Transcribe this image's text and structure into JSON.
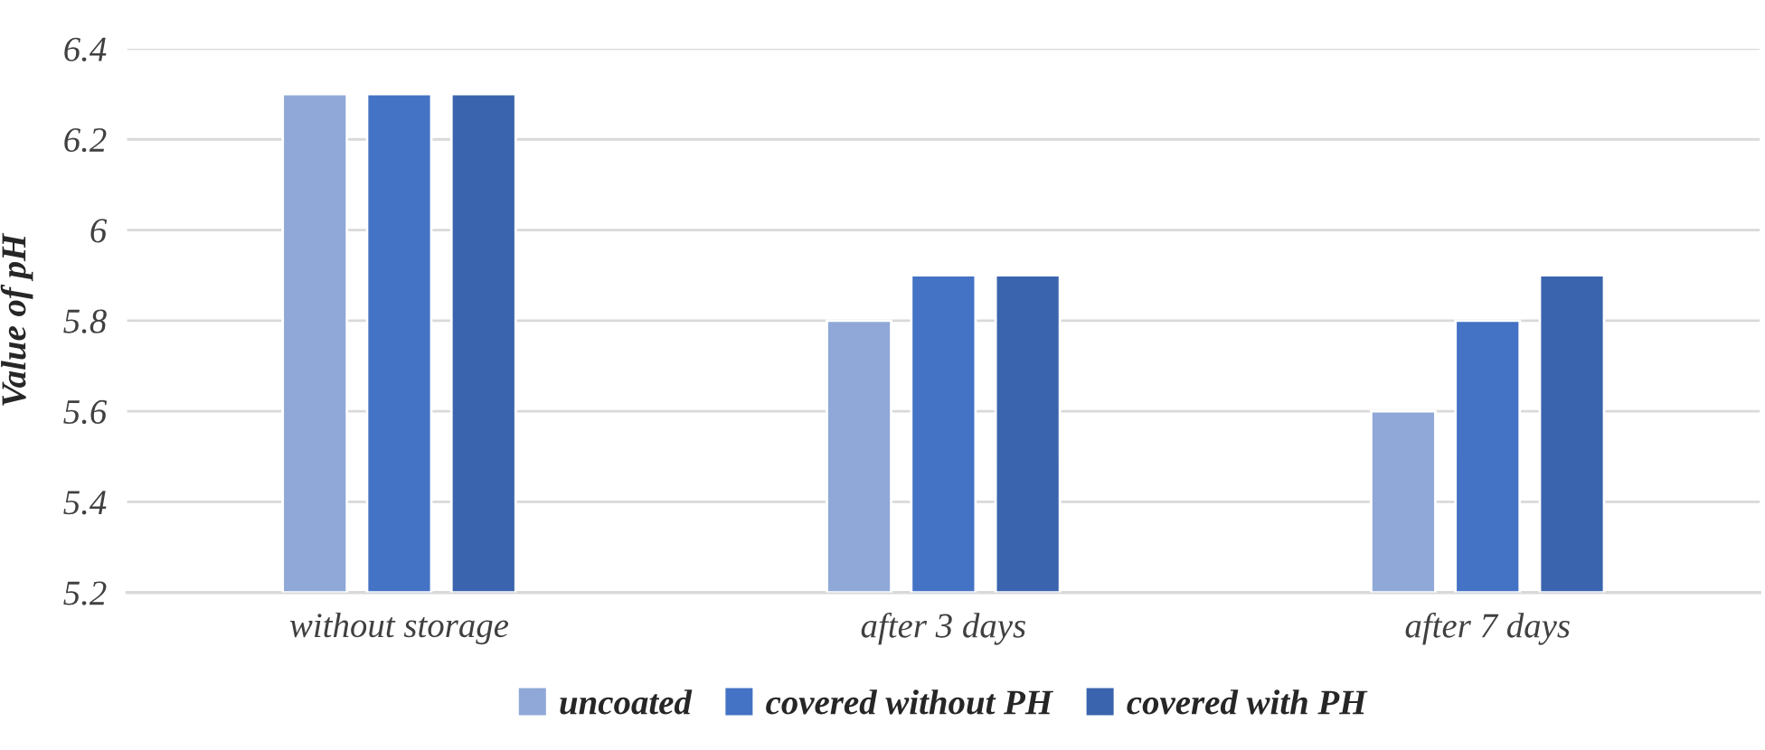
{
  "chart_data": {
    "type": "bar",
    "ylabel": "Value of pH",
    "categories": [
      "without storage",
      "after 3 days",
      "after 7 days"
    ],
    "series": [
      {
        "name": "uncoated",
        "color": "#8fa8d8",
        "values": [
          6.3,
          5.8,
          5.6
        ]
      },
      {
        "name": "covered without PH",
        "color": "#4472c4",
        "values": [
          6.3,
          5.9,
          5.8
        ]
      },
      {
        "name": "covered with PH",
        "color": "#3a64ad",
        "values": [
          6.3,
          5.9,
          5.9
        ]
      }
    ],
    "ylim": [
      5.2,
      6.4
    ],
    "yticks": [
      {
        "value": 5.2,
        "label": "5.2"
      },
      {
        "value": 5.4,
        "label": "5.4"
      },
      {
        "value": 5.6,
        "label": "5.6"
      },
      {
        "value": 5.8,
        "label": "5.8"
      },
      {
        "value": 6,
        "label": "6"
      },
      {
        "value": 6.2,
        "label": "6.2"
      },
      {
        "value": 6.4,
        "label": "6.4"
      }
    ],
    "grid": "y",
    "legend": "bottom"
  }
}
